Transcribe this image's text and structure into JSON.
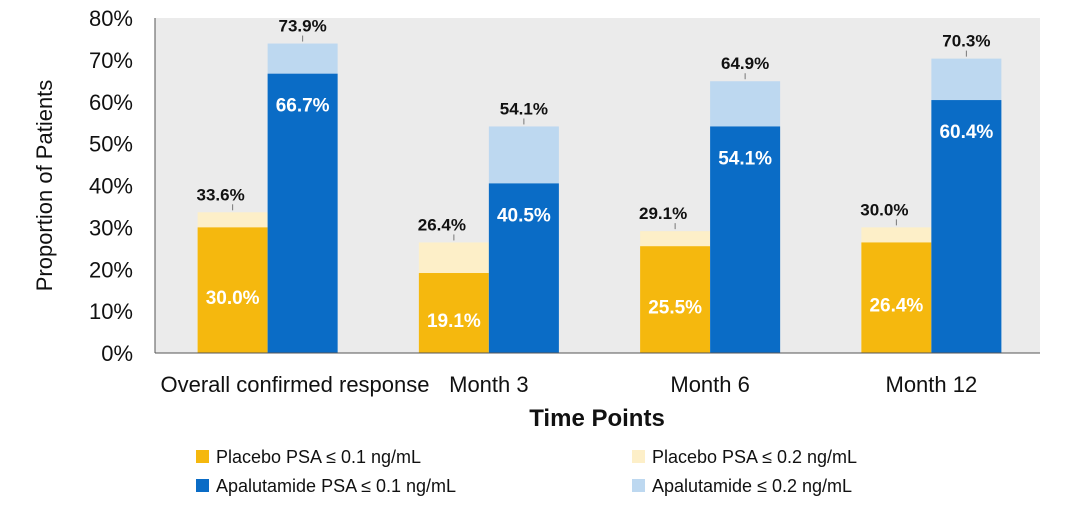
{
  "chart_data": {
    "type": "bar",
    "title": "",
    "xlabel": "Time Points",
    "ylabel": "Proportion of Patients",
    "ylim": [
      0,
      80
    ],
    "yticks": [
      "0%",
      "10%",
      "20%",
      "30%",
      "40%",
      "50%",
      "60%",
      "70%",
      "80%"
    ],
    "categories": [
      "Overall confirmed response",
      "Month 3",
      "Month 6",
      "Month 12"
    ],
    "series": [
      {
        "name": "Placebo PSA ≤ 0.1 ng/mL",
        "group": "Placebo",
        "color": "#F5B80E",
        "values": [
          30.0,
          19.1,
          25.5,
          26.4
        ],
        "labels": [
          "30.0%",
          "19.1%",
          "25.5%",
          "26.4%"
        ]
      },
      {
        "name": "Placebo PSA ≤ 0.2 ng/mL",
        "group": "Placebo",
        "color": "#FDEFC8",
        "values": [
          33.6,
          26.4,
          29.1,
          30.0
        ],
        "labels": [
          "33.6%",
          "26.4%",
          "29.1%",
          "30.0%"
        ]
      },
      {
        "name": "Apalutamide PSA ≤ 0.1 ng/mL",
        "group": "Apalutamide",
        "color": "#0A6CC6",
        "values": [
          66.7,
          40.5,
          54.1,
          60.4
        ],
        "labels": [
          "66.7%",
          "40.5%",
          "54.1%",
          "60.4%"
        ]
      },
      {
        "name": "Apalutamide ≤ 0.2 ng/mL",
        "group": "Apalutamide",
        "color": "#BDD8F0",
        "values": [
          73.9,
          54.1,
          64.9,
          70.3
        ],
        "labels": [
          "73.9%",
          "54.1%",
          "64.9%",
          "70.3%"
        ]
      }
    ],
    "plot_background": "#EBEBEB",
    "grid": false,
    "legend_position": "bottom"
  }
}
